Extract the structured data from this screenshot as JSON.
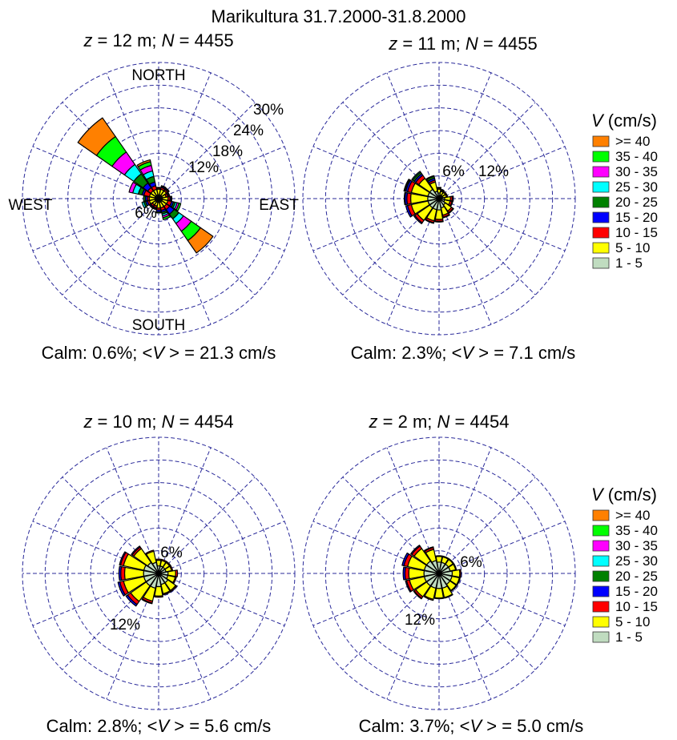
{
  "title": "Marikultura 31.7.2000-31.8.2000",
  "directions": [
    "N",
    "NNE",
    "NE",
    "ENE",
    "E",
    "ESE",
    "SE",
    "SSE",
    "S",
    "SSW",
    "SW",
    "WSW",
    "W",
    "WNW",
    "NW",
    "NNW"
  ],
  "compass_labels": {
    "north": "NORTH",
    "south": "SOUTH",
    "east": "EAST",
    "west": "WEST"
  },
  "legend": {
    "title_var": "V",
    "title_unit": " (cm/s)",
    "bins": [
      {
        "label": ">= 40",
        "color": "#ff8000"
      },
      {
        "label": "35 - 40",
        "color": "#00ff00"
      },
      {
        "label": "30 - 35",
        "color": "#ff00ff"
      },
      {
        "label": "25 - 30",
        "color": "#00ffff"
      },
      {
        "label": "20 - 25",
        "color": "#008000"
      },
      {
        "label": "15 - 20",
        "color": "#0000ff"
      },
      {
        "label": "10 - 15",
        "color": "#ff0000"
      },
      {
        "label": "5 - 10",
        "color": "#ffff00"
      },
      {
        "label": "1 - 5",
        "color": "#c0dcc0"
      }
    ]
  },
  "chart_data": [
    {
      "type": "windrose",
      "title": "z = 12 m; N = 4455",
      "z": "12 m",
      "N": "4455",
      "footer": "Calm: 0.6%; <V> = 21.3 cm/s",
      "calm": "0.6%",
      "mean": "21.3 cm/s",
      "rmax": 36,
      "ring_labels": [
        "6%",
        "12%",
        "18%",
        "24%",
        "30%"
      ],
      "stacks": [
        [
          1.0,
          1.5,
          0.3,
          0.2,
          0,
          0,
          0,
          0,
          0
        ],
        [
          1.0,
          1.5,
          0.5,
          0.3,
          0.2,
          0,
          0,
          0,
          0
        ],
        [
          1.0,
          1.5,
          0.4,
          0.3,
          0.2,
          0,
          0,
          0,
          0
        ],
        [
          1.0,
          1.0,
          0.5,
          0.3,
          0.2,
          0,
          0,
          0,
          0
        ],
        [
          1.0,
          1.5,
          0.5,
          0.3,
          0.2,
          0,
          0,
          0,
          0
        ],
        [
          1.0,
          1.5,
          1.0,
          0.5,
          0.5,
          0.5,
          0.5,
          0.5,
          0
        ],
        [
          1.0,
          1.5,
          1.0,
          1.5,
          1.5,
          1.5,
          2.5,
          3.0,
          4.0
        ],
        [
          1.0,
          1.5,
          0.7,
          0.5,
          0.5,
          0.5,
          0.5,
          0.5,
          0
        ],
        [
          1.0,
          1.5,
          0.5,
          0.5,
          0.3,
          0,
          0,
          0,
          0
        ],
        [
          1.0,
          1.0,
          0.5,
          0.3,
          0.2,
          0,
          0,
          0,
          0
        ],
        [
          1.0,
          1.0,
          0.5,
          0.3,
          0.2,
          0,
          0,
          0,
          0
        ],
        [
          1.0,
          1.5,
          0.5,
          0.5,
          0.5,
          0.5,
          0,
          0,
          0
        ],
        [
          1.0,
          1.5,
          0.5,
          0.5,
          0.5,
          0,
          0,
          0,
          0
        ],
        [
          1.0,
          1.5,
          1.5,
          0.5,
          1.0,
          1.5,
          1.0,
          0,
          0
        ],
        [
          1.0,
          1.5,
          1.0,
          1.5,
          3.0,
          3.0,
          4.0,
          5.0,
          6.0
        ],
        [
          1.0,
          1.5,
          1.0,
          1.0,
          1.5,
          1.5,
          1.5,
          1.0,
          0.5
        ]
      ]
    },
    {
      "type": "windrose",
      "title": "z = 11 m; N = 4455",
      "z": "11 m",
      "N": "4455",
      "footer": "Calm: 2.3%; <V> = 7.1 cm/s",
      "calm": "2.3%",
      "mean": "7.1 cm/s",
      "rmax": 36,
      "ring_labels": [
        "6%",
        "12%"
      ],
      "stacks": [
        [
          1.5,
          1.0,
          0.3,
          0.2,
          0,
          0,
          0,
          0,
          0
        ],
        [
          1.0,
          1.0,
          0.3,
          0.2,
          0,
          0,
          0,
          0,
          0
        ],
        [
          1.0,
          1.0,
          0.3,
          0,
          0,
          0,
          0,
          0,
          0
        ],
        [
          1.0,
          1.0,
          0.3,
          0,
          0,
          0,
          0,
          0,
          0
        ],
        [
          1.5,
          1.5,
          0.5,
          0.3,
          0,
          0,
          0,
          0,
          0
        ],
        [
          1.5,
          1.5,
          0.5,
          0.2,
          0,
          0,
          0,
          0,
          0
        ],
        [
          2.0,
          2.0,
          0.5,
          0.2,
          0,
          0,
          0,
          0,
          0
        ],
        [
          2.5,
          2.0,
          0.5,
          0.2,
          0,
          0,
          0,
          0,
          0
        ],
        [
          3.0,
          2.5,
          0.5,
          0.2,
          0,
          0,
          0,
          0,
          0
        ],
        [
          3.0,
          3.0,
          0.5,
          0.2,
          0,
          0,
          0,
          0,
          0
        ],
        [
          3.0,
          4.0,
          0.8,
          0.3,
          0,
          0,
          0,
          0,
          0
        ],
        [
          3.0,
          4.5,
          1.0,
          0.5,
          0,
          0,
          0,
          0,
          0
        ],
        [
          3.0,
          4.5,
          1.0,
          0.5,
          0.2,
          0,
          0,
          0,
          0
        ],
        [
          3.0,
          4.5,
          1.0,
          0.5,
          0.3,
          0.2,
          0,
          0,
          0
        ],
        [
          3.0,
          3.5,
          1.0,
          0.5,
          0.5,
          0.3,
          0,
          0,
          0
        ],
        [
          2.0,
          2.5,
          0.5,
          0.5,
          0.5,
          0.2,
          0,
          0,
          0
        ]
      ]
    },
    {
      "type": "windrose",
      "title": "z = 10 m; N = 4454",
      "z": "10 m",
      "N": "4454",
      "footer": "Calm: 2.8%; <V> = 5.6 cm/s",
      "calm": "2.8%",
      "mean": "5.6 cm/s",
      "rmax": 36,
      "ring_labels": [
        "6%",
        "12%"
      ],
      "stacks": [
        [
          2.0,
          1.5,
          0.3,
          0,
          0,
          0,
          0,
          0,
          0
        ],
        [
          2.0,
          1.5,
          0.3,
          0,
          0,
          0,
          0,
          0,
          0
        ],
        [
          2.0,
          1.5,
          0.3,
          0,
          0,
          0,
          0,
          0,
          0
        ],
        [
          2.0,
          1.5,
          0.3,
          0,
          0,
          0,
          0,
          0,
          0
        ],
        [
          2.5,
          2.0,
          0.5,
          0,
          0,
          0,
          0,
          0,
          0
        ],
        [
          2.5,
          2.0,
          0.3,
          0,
          0,
          0,
          0,
          0,
          0
        ],
        [
          3.0,
          2.5,
          0.3,
          0,
          0,
          0,
          0,
          0,
          0
        ],
        [
          3.0,
          2.5,
          0.3,
          0,
          0,
          0,
          0,
          0,
          0
        ],
        [
          3.5,
          2.5,
          0.3,
          0,
          0,
          0,
          0,
          0,
          0
        ],
        [
          4.0,
          3.5,
          0.5,
          0.2,
          0,
          0,
          0,
          0,
          0
        ],
        [
          4.0,
          5.0,
          1.0,
          0.5,
          0,
          0,
          0,
          0,
          0
        ],
        [
          4.0,
          5.5,
          1.0,
          0.5,
          0,
          0,
          0,
          0,
          0
        ],
        [
          4.0,
          5.0,
          1.0,
          0.5,
          0,
          0,
          0,
          0,
          0
        ],
        [
          4.0,
          5.5,
          0.8,
          0.3,
          0,
          0,
          0,
          0,
          0
        ],
        [
          3.5,
          4.5,
          0.5,
          0.3,
          0,
          0,
          0,
          0,
          0
        ],
        [
          3.0,
          3.0,
          0.3,
          0,
          0,
          0,
          0,
          0,
          0
        ]
      ]
    },
    {
      "type": "windrose",
      "title": "z = 2 m;  N = 4454",
      "z": "2 m",
      "N": "4454",
      "footer": "Calm: 3.7%; <V> = 5.0 cm/s",
      "calm": "3.7%",
      "mean": "5.0 cm/s",
      "rmax": 36,
      "ring_labels": [
        "6%",
        "12%"
      ],
      "stacks": [
        [
          3.0,
          1.5,
          0.2,
          0,
          0,
          0,
          0,
          0,
          0
        ],
        [
          3.0,
          1.5,
          0.2,
          0,
          0,
          0,
          0,
          0,
          0
        ],
        [
          3.0,
          1.5,
          0.2,
          0,
          0,
          0,
          0,
          0,
          0
        ],
        [
          3.0,
          1.5,
          0.2,
          0,
          0,
          0,
          0,
          0,
          0
        ],
        [
          3.5,
          2.0,
          0.3,
          0,
          0,
          0,
          0,
          0,
          0
        ],
        [
          3.5,
          2.0,
          0.2,
          0,
          0,
          0,
          0,
          0,
          0
        ],
        [
          3.5,
          2.0,
          0.2,
          0,
          0,
          0,
          0,
          0,
          0
        ],
        [
          4.0,
          2.5,
          0.2,
          0,
          0,
          0,
          0,
          0,
          0
        ],
        [
          4.0,
          2.5,
          0.2,
          0,
          0,
          0,
          0,
          0,
          0
        ],
        [
          4.0,
          3.0,
          0.3,
          0,
          0,
          0,
          0,
          0,
          0
        ],
        [
          4.0,
          3.5,
          0.5,
          0.2,
          0,
          0,
          0,
          0,
          0
        ],
        [
          4.0,
          4.0,
          0.8,
          0.3,
          0,
          0,
          0,
          0,
          0
        ],
        [
          4.0,
          4.0,
          1.0,
          0.5,
          0,
          0,
          0,
          0,
          0
        ],
        [
          4.0,
          4.5,
          1.0,
          0.5,
          0,
          0,
          0,
          0,
          0
        ],
        [
          4.0,
          4.0,
          0.8,
          0.3,
          0,
          0,
          0,
          0,
          0
        ],
        [
          3.5,
          3.0,
          0.5,
          0.2,
          0,
          0,
          0,
          0,
          0
        ]
      ]
    }
  ]
}
